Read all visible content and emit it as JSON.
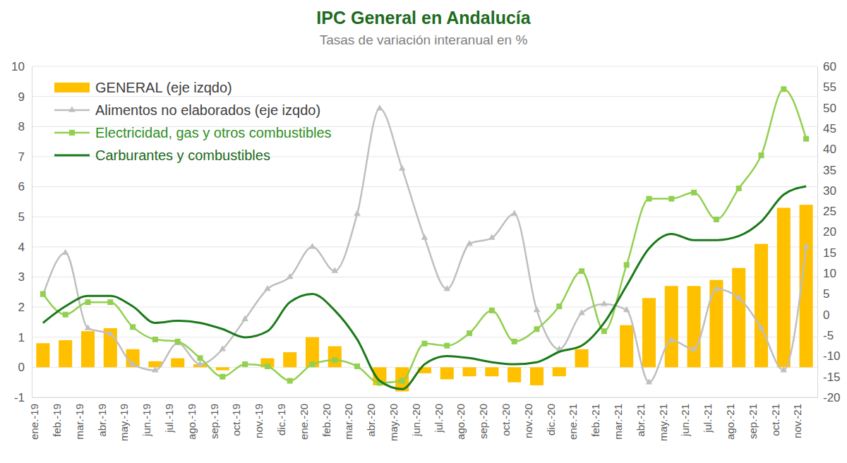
{
  "chart_data": {
    "type": "bar",
    "title": "IPC General en Andalucía",
    "subtitle": "Tasas de variación interanual en %",
    "categories": [
      "ene.-19",
      "feb.-19",
      "mar.-19",
      "abr.-19",
      "may.-19",
      "jun.-19",
      "jul.-19",
      "ago.-19",
      "sep.-19",
      "oct.-19",
      "nov.-19",
      "dic.-19",
      "ene.-20",
      "feb.-20",
      "mar.-20",
      "abr.-20",
      "may.-20",
      "jun.-20",
      "jul.-20",
      "ago.-20",
      "sep.-20",
      "oct.-20",
      "nov.-20",
      "dic.-20",
      "ene.-21",
      "feb.-21",
      "mar.-21",
      "abr.-21",
      "may.-21",
      "jun.-21",
      "jul.-21",
      "ago.-21",
      "sep.-21",
      "oct.-21",
      "nov.-21"
    ],
    "series": [
      {
        "name": "GENERAL (eje izqdo)",
        "type": "bar",
        "axis": "y",
        "color": "#ffc000",
        "values": [
          0.8,
          0.9,
          1.2,
          1.3,
          0.6,
          0.2,
          0.3,
          0.1,
          -0.1,
          0.0,
          0.3,
          0.5,
          1.0,
          0.7,
          0.0,
          -0.6,
          -0.8,
          -0.2,
          -0.4,
          -0.3,
          -0.3,
          -0.5,
          -0.6,
          -0.3,
          0.6,
          0.0,
          1.4,
          2.3,
          2.7,
          2.7,
          2.9,
          3.3,
          4.1,
          5.3,
          5.4
        ]
      },
      {
        "name": "Alimentos no elaborados (eje izqdo)",
        "type": "line",
        "axis": "y",
        "color": "#bfbfbf",
        "marker": "triangle",
        "line_style": "solid",
        "values": [
          2.4,
          3.8,
          1.3,
          1.1,
          0.1,
          -0.1,
          0.8,
          0.1,
          0.6,
          1.6,
          2.6,
          3.0,
          4.0,
          3.2,
          5.1,
          8.6,
          6.6,
          4.3,
          2.6,
          4.1,
          4.3,
          5.1,
          1.9,
          0.6,
          1.8,
          2.1,
          1.9,
          -0.5,
          0.9,
          0.6,
          2.6,
          2.3,
          1.3,
          -0.1,
          4.0
        ]
      },
      {
        "name": "Electricidad, gas y otros combustibles",
        "type": "line",
        "axis": "y2",
        "color": "#92d050",
        "marker": "square",
        "line_style": "solid",
        "values": [
          5,
          0,
          3,
          3,
          -3,
          -6,
          -6.5,
          -10.5,
          -15,
          -12,
          -12.5,
          -16,
          -12,
          -11,
          -12.5,
          -16.5,
          -16,
          -7,
          -7.5,
          -4.5,
          1,
          -6.5,
          -3.5,
          2,
          10.5,
          -4,
          12,
          28,
          28,
          29.5,
          23,
          30.5,
          38.5,
          54.5,
          42.5
        ]
      },
      {
        "name": "Carburantes y combustibles",
        "type": "line",
        "axis": "y2",
        "color": "#1a7a1a",
        "marker": "none",
        "line_style": "solid",
        "values": [
          -2,
          2,
          4.5,
          4.5,
          2,
          -2,
          -1.5,
          -2,
          -3.5,
          -5.5,
          -4,
          3,
          5,
          1,
          -6,
          -16,
          -18,
          -12,
          -10,
          -10.5,
          -11.5,
          -12,
          -11.5,
          -9,
          -7.5,
          -2,
          7,
          16,
          19.5,
          18,
          18,
          19,
          22.5,
          29,
          31
        ]
      }
    ],
    "ylim": [
      -1,
      10
    ],
    "yticks": [
      -1,
      0,
      1,
      2,
      3,
      4,
      5,
      6,
      7,
      8,
      9,
      10
    ],
    "y2lim": [
      -20,
      60
    ],
    "y2ticks": [
      -20,
      -15,
      -10,
      -5,
      0,
      5,
      10,
      15,
      20,
      25,
      30,
      35,
      40,
      45,
      50,
      55,
      60
    ],
    "grid": true,
    "legend": "top-left"
  }
}
